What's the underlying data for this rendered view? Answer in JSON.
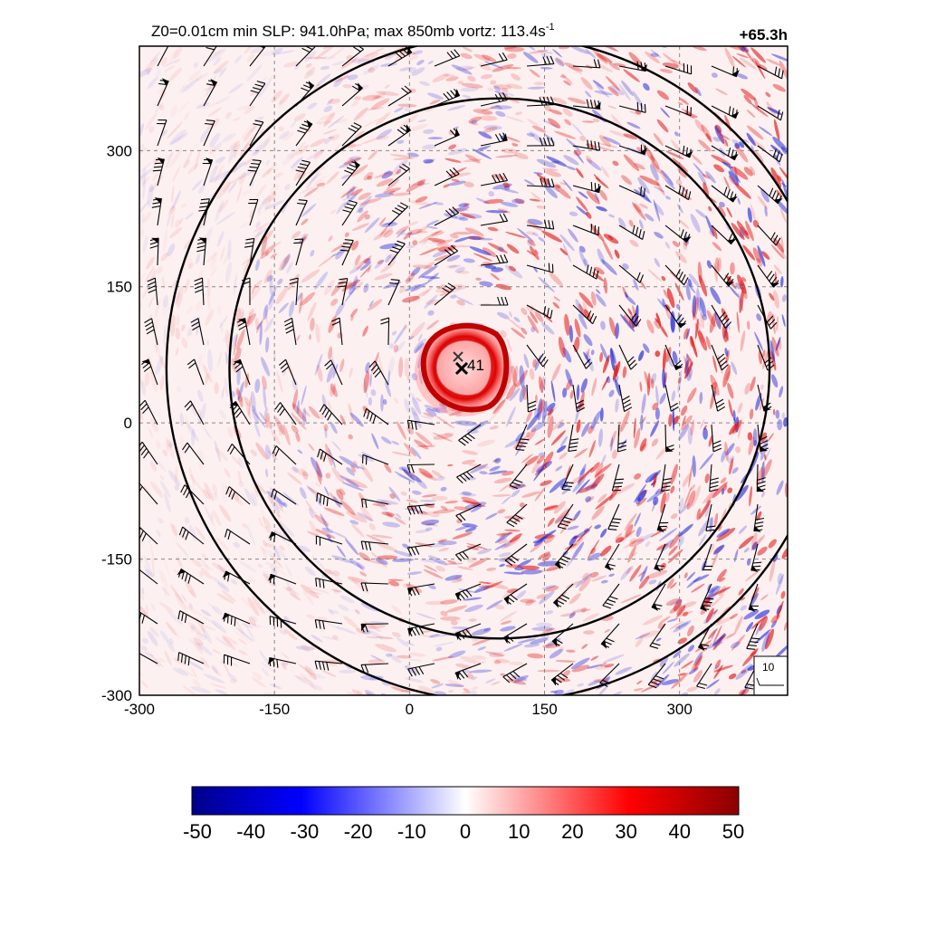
{
  "header": {
    "title_main": "Z0=0.01cm  min SLP: 941.0hPa; max 850mb vortz: 113.4s",
    "title_sup": "-1",
    "time_label": "+65.3h"
  },
  "chart_data": {
    "type": "heatmap",
    "description_fields": {
      "field": "850mb relative vorticity with wind barbs",
      "center_marker_label": "41"
    },
    "x_ticks": [
      -300,
      -150,
      0,
      150,
      300
    ],
    "y_ticks": [
      300,
      150,
      0,
      -150,
      -300
    ],
    "x_tick_labels": [
      "-300",
      "-150",
      "0",
      "150",
      "300"
    ],
    "y_tick_labels": [
      "300",
      "150",
      "0",
      "-150",
      "-300"
    ],
    "xlim": [
      -300,
      420
    ],
    "ylim": [
      -300,
      415
    ],
    "grid": true,
    "storm_center": {
      "x": 58,
      "y": 60
    },
    "contours": [
      {
        "radius": 300,
        "center_x": 100,
        "center_y": 60
      },
      {
        "radius": 370,
        "center_x": 100,
        "center_y": 60
      }
    ],
    "wind_reference": {
      "label": "10"
    },
    "colorbar": {
      "ticks": [
        -50,
        -40,
        -30,
        -20,
        -10,
        0,
        10,
        20,
        30,
        40,
        50
      ],
      "tick_labels": [
        "-50",
        "-40",
        "-30",
        "-20",
        "-10",
        "0",
        "10",
        "20",
        "30",
        "40",
        "50"
      ],
      "range": [
        -50,
        50
      ],
      "colors": [
        "#00008b",
        "#0000ff",
        "#ffffff",
        "#ff0000",
        "#8b0000"
      ]
    }
  }
}
